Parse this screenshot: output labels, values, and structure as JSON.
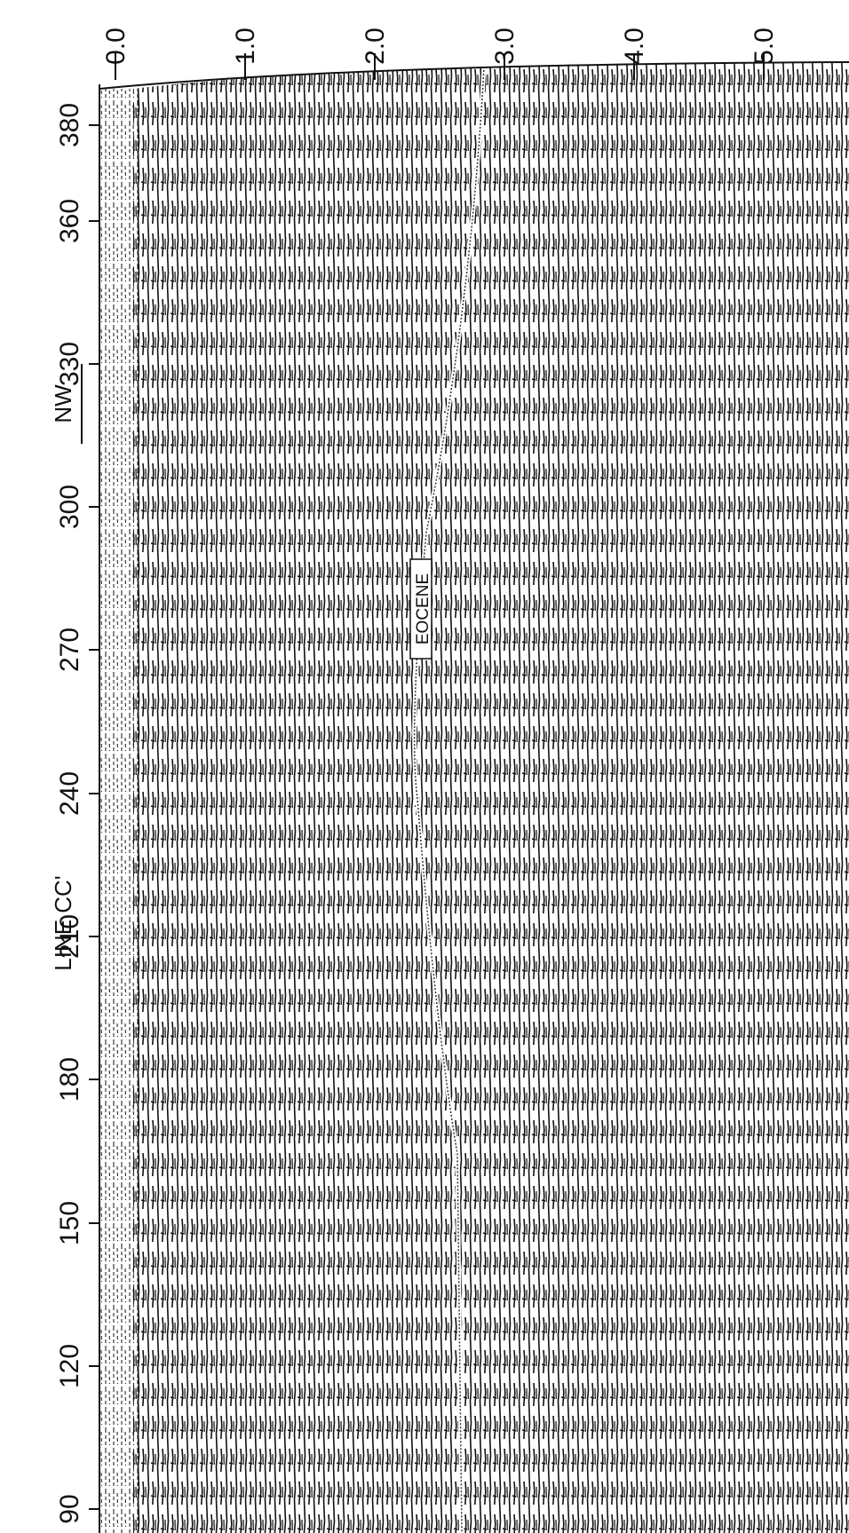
{
  "header": {
    "line": "LINE CC'",
    "direction": "NW"
  },
  "shot_points": [
    "90",
    "120",
    "150",
    "180",
    "210",
    "240",
    "270",
    "300",
    "330",
    "360",
    "380"
  ],
  "time_labels": [
    "0.0",
    "1.0",
    "2.0",
    "3.0",
    "4.0",
    "5.0"
  ],
  "horizon": {
    "label": "EOCENE"
  }
}
